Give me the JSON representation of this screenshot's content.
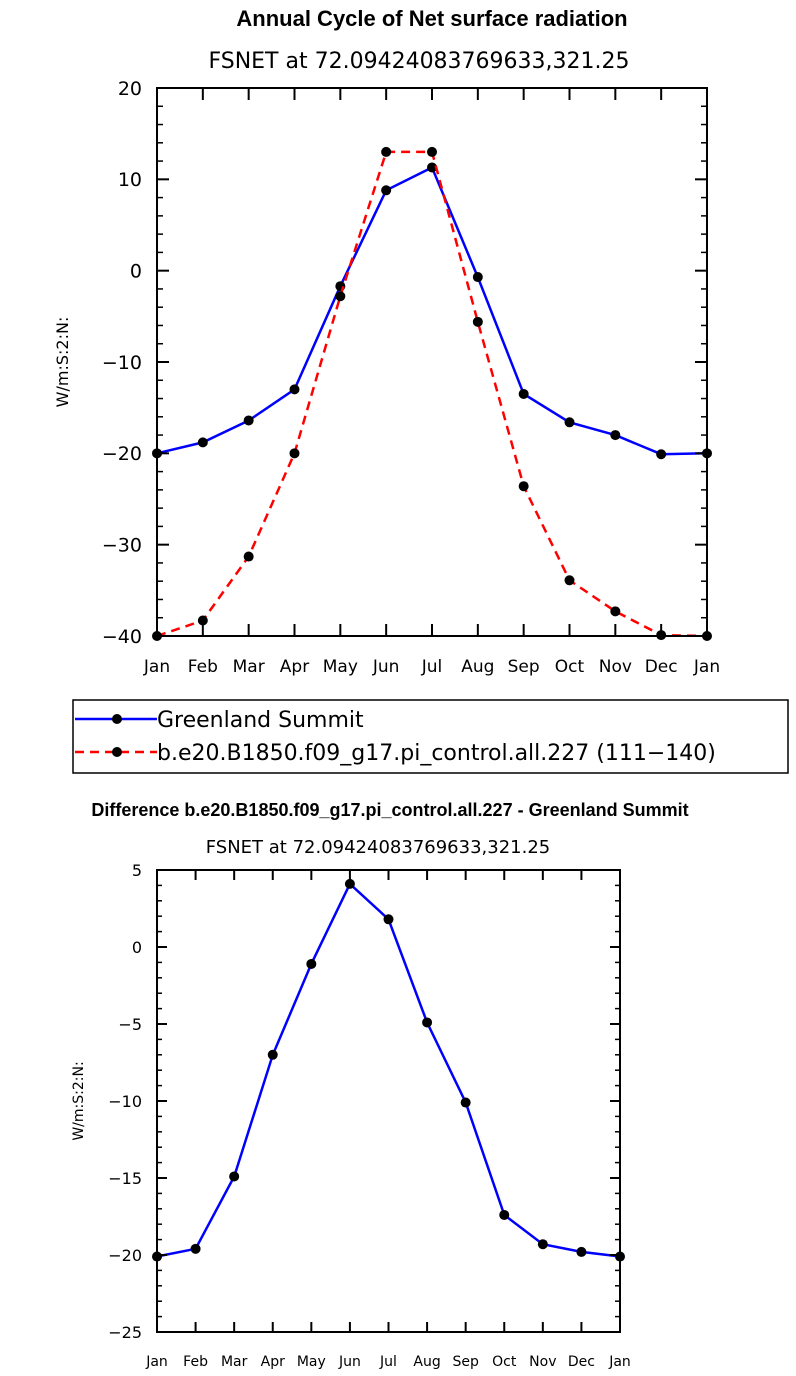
{
  "chart_data": [
    {
      "type": "line",
      "title": "Annual Cycle of Net surface radiation",
      "subtitle": "FSNET at 72.09424083769633,321.25",
      "ylabel": "W/m:S:2:N:",
      "xlabel": "",
      "categories": [
        "Jan",
        "Feb",
        "Mar",
        "Apr",
        "May",
        "Jun",
        "Jul",
        "Aug",
        "Sep",
        "Oct",
        "Nov",
        "Dec",
        "Jan"
      ],
      "ylim": [
        -40,
        20
      ],
      "yticks": [
        -40,
        -30,
        -20,
        -10,
        0,
        10,
        20
      ],
      "ytick_labels": [
        "−40",
        "−30",
        "−20",
        "−10",
        "0",
        "10",
        "20"
      ],
      "series": [
        {
          "name": "Greenland Summit",
          "color": "#0000ff",
          "dash": "solid",
          "values": [
            -20.0,
            -18.8,
            -16.4,
            -13.0,
            -1.7,
            8.8,
            11.3,
            -0.7,
            -13.5,
            -16.6,
            -18.0,
            -20.1,
            -20.0
          ]
        },
        {
          "name": "b.e20.B1850.f09_g17.pi_control.all.227 (111−140)",
          "color": "#ff0000",
          "dash": "dashed",
          "values": [
            -40.0,
            -38.3,
            -31.3,
            -20.0,
            -2.8,
            13.0,
            13.0,
            -5.6,
            -23.6,
            -33.9,
            -37.3,
            -39.9,
            -40.0
          ]
        }
      ],
      "legend": "below"
    },
    {
      "type": "line",
      "title": "Difference b.e20.B1850.f09_g17.pi_control.all.227 - Greenland Summit",
      "subtitle": "FSNET at 72.09424083769633,321.25",
      "ylabel": "W/m:S:2:N:",
      "xlabel": "",
      "categories": [
        "Jan",
        "Feb",
        "Mar",
        "Apr",
        "May",
        "Jun",
        "Jul",
        "Aug",
        "Sep",
        "Oct",
        "Nov",
        "Dec",
        "Jan"
      ],
      "ylim": [
        -25,
        5
      ],
      "yticks": [
        -25,
        -20,
        -15,
        -10,
        -5,
        0,
        5
      ],
      "ytick_labels": [
        "−25",
        "−20",
        "−15",
        "−10",
        "−5",
        "0",
        "5"
      ],
      "series": [
        {
          "name": "Difference",
          "color": "#0000ff",
          "dash": "solid",
          "values": [
            -20.1,
            -19.6,
            -14.9,
            -7.0,
            -1.1,
            4.1,
            1.8,
            -4.9,
            -10.1,
            -17.4,
            -19.3,
            -19.8,
            -20.1
          ]
        }
      ]
    }
  ]
}
